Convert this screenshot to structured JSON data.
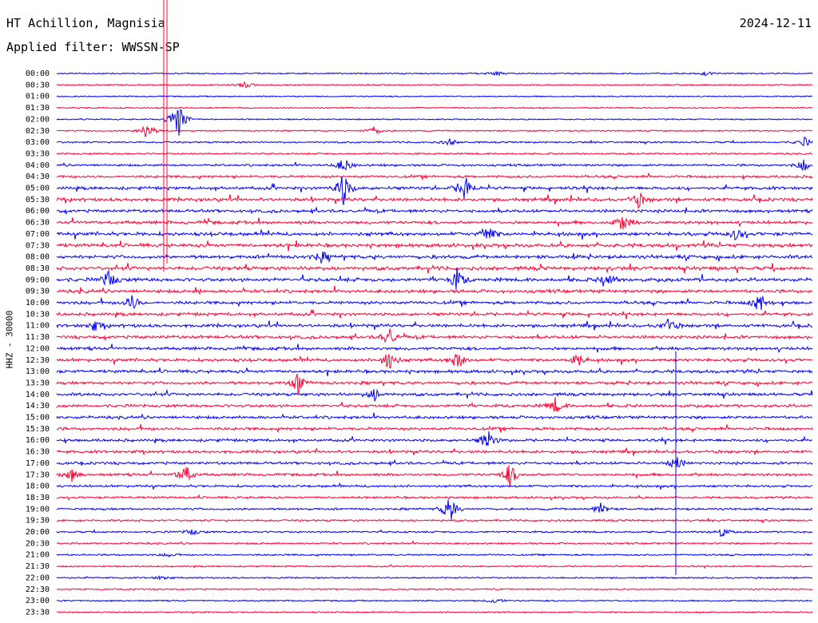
{
  "header": {
    "station": "HT Achillion, Magnisia",
    "date": "2024-12-11",
    "filter_label": "Applied filter: WWSSN-SP"
  },
  "chart_data": {
    "type": "line",
    "title": "HT Achillion, Magnisia",
    "ylabel": "HHZ - 30000",
    "colors": [
      "#0000ff",
      "#ff0033"
    ],
    "row_labels": [
      "00:00",
      "00:30",
      "01:00",
      "01:30",
      "02:00",
      "02:30",
      "03:00",
      "03:30",
      "04:00",
      "04:30",
      "05:00",
      "05:30",
      "06:00",
      "06:30",
      "07:00",
      "07:30",
      "08:00",
      "08:30",
      "09:00",
      "09:30",
      "10:00",
      "10:30",
      "11:00",
      "11:30",
      "12:00",
      "12:30",
      "13:00",
      "13:30",
      "14:00",
      "14:30",
      "15:00",
      "15:30",
      "16:00",
      "16:30",
      "17:00",
      "17:30",
      "18:00",
      "18:30",
      "19:00",
      "19:30",
      "20:00",
      "20:30",
      "21:00",
      "21:30",
      "22:00",
      "22:30",
      "23:00",
      "23:30"
    ],
    "row_activity": [
      0.1,
      0.1,
      0.08,
      0.08,
      0.08,
      0.12,
      0.25,
      0.25,
      0.45,
      0.55,
      0.75,
      0.85,
      0.75,
      0.8,
      0.9,
      0.95,
      0.9,
      1.0,
      0.95,
      0.85,
      0.75,
      0.75,
      0.8,
      0.8,
      0.75,
      0.75,
      0.75,
      0.7,
      0.75,
      0.7,
      0.7,
      0.7,
      0.65,
      0.65,
      0.6,
      0.6,
      0.5,
      0.45,
      0.4,
      0.35,
      0.3,
      0.3,
      0.25,
      0.2,
      0.18,
      0.15,
      0.12,
      0.12
    ],
    "events": [
      {
        "row": 0,
        "time": 0.58,
        "amp": 3
      },
      {
        "row": 0,
        "time": 0.86,
        "amp": 2.5
      },
      {
        "row": 1,
        "time": 0.25,
        "amp": 4
      },
      {
        "row": 4,
        "time": 0.16,
        "amp": 30
      },
      {
        "row": 5,
        "time": 0.12,
        "amp": 12
      },
      {
        "row": 5,
        "time": 0.42,
        "amp": 6
      },
      {
        "row": 6,
        "time": 0.52,
        "amp": 4
      },
      {
        "row": 6,
        "time": 0.99,
        "amp": 6
      },
      {
        "row": 8,
        "time": 0.38,
        "amp": 10
      },
      {
        "row": 8,
        "time": 0.99,
        "amp": 9
      },
      {
        "row": 10,
        "time": 0.38,
        "amp": 22
      },
      {
        "row": 10,
        "time": 0.54,
        "amp": 18
      },
      {
        "row": 11,
        "time": 0.77,
        "amp": 10
      },
      {
        "row": 13,
        "time": 0.75,
        "amp": 12
      },
      {
        "row": 14,
        "time": 0.57,
        "amp": 12
      },
      {
        "row": 14,
        "time": 0.9,
        "amp": 8
      },
      {
        "row": 16,
        "time": 0.35,
        "amp": 7
      },
      {
        "row": 18,
        "time": 0.07,
        "amp": 12
      },
      {
        "row": 18,
        "time": 0.53,
        "amp": 14
      },
      {
        "row": 18,
        "time": 0.73,
        "amp": 8
      },
      {
        "row": 20,
        "time": 0.1,
        "amp": 10
      },
      {
        "row": 20,
        "time": 0.93,
        "amp": 14
      },
      {
        "row": 22,
        "time": 0.05,
        "amp": 7
      },
      {
        "row": 22,
        "time": 0.81,
        "amp": 10
      },
      {
        "row": 23,
        "time": 0.44,
        "amp": 12
      },
      {
        "row": 25,
        "time": 0.44,
        "amp": 14
      },
      {
        "row": 25,
        "time": 0.53,
        "amp": 12
      },
      {
        "row": 25,
        "time": 0.69,
        "amp": 8
      },
      {
        "row": 27,
        "time": 0.32,
        "amp": 14
      },
      {
        "row": 28,
        "time": 0.42,
        "amp": 8
      },
      {
        "row": 29,
        "time": 0.66,
        "amp": 10
      },
      {
        "row": 32,
        "time": 0.57,
        "amp": 14
      },
      {
        "row": 34,
        "time": 0.82,
        "amp": 10
      },
      {
        "row": 35,
        "time": 0.17,
        "amp": 14
      },
      {
        "row": 35,
        "time": 0.6,
        "amp": 16
      },
      {
        "row": 35,
        "time": 0.02,
        "amp": 8
      },
      {
        "row": 38,
        "time": 0.52,
        "amp": 20
      },
      {
        "row": 38,
        "time": 0.72,
        "amp": 8
      },
      {
        "row": 40,
        "time": 0.88,
        "amp": 7
      },
      {
        "row": 40,
        "time": 0.18,
        "amp": 4
      },
      {
        "row": 42,
        "time": 0.15,
        "amp": 3
      },
      {
        "row": 44,
        "time": 0.14,
        "amp": 3
      },
      {
        "row": 46,
        "time": 0.58,
        "amp": 4
      }
    ]
  }
}
